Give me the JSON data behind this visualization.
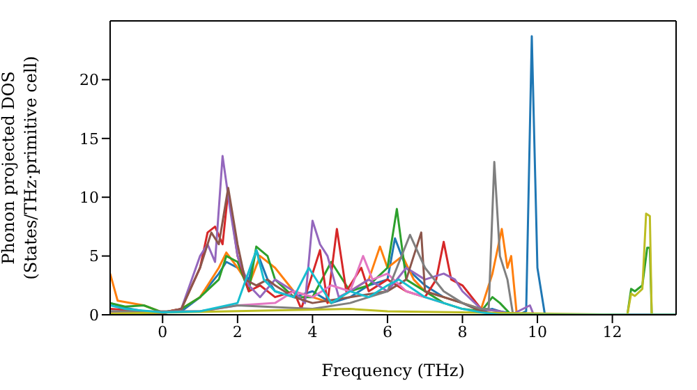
{
  "chart_data": {
    "type": "line",
    "xlabel": "Frequency (THz)",
    "ylabel": "Phonon projected DOS\n(States/THz·primitive cell)",
    "xlim": [
      -1.4,
      13.7
    ],
    "xticks": [
      0,
      2,
      4,
      6,
      8,
      10,
      12
    ],
    "ylim": [
      0,
      25
    ],
    "yticks": [
      0,
      5,
      10,
      15,
      20
    ],
    "grid": false,
    "legend": false,
    "marker": "none",
    "line_style": "solid",
    "series": [
      {
        "color": "#1f77b4",
        "x": [
          -1.4,
          -1,
          -0.5,
          0,
          0.5,
          1,
          1.5,
          1.7,
          2,
          2.3,
          2.5,
          2.8,
          3,
          3.5,
          4,
          4.5,
          5,
          5.5,
          6,
          6.2,
          6.5,
          7,
          7.5,
          8,
          8.5,
          8.8,
          9,
          9.5,
          9.7,
          9.85,
          10,
          10.2
        ],
        "values": [
          1,
          0.6,
          0.3,
          0.2,
          0.3,
          1.5,
          3.5,
          4.5,
          4,
          3,
          5.5,
          3,
          2,
          1.5,
          2,
          1,
          1.5,
          2.5,
          3,
          6.5,
          4,
          2.5,
          1.5,
          1,
          0.3,
          0.5,
          0.3,
          0,
          0.3,
          23.7,
          4,
          0
        ]
      },
      {
        "color": "#ff7f0e",
        "x": [
          -1.4,
          -1.2,
          -0.5,
          0,
          0.5,
          1,
          1.5,
          1.7,
          2,
          2.3,
          2.6,
          3,
          3.5,
          4,
          4.5,
          5,
          5.5,
          5.8,
          6,
          6.4,
          6.7,
          7,
          7.5,
          8,
          8.5,
          8.8,
          9.05,
          9.2,
          9.3,
          9.45,
          13.7
        ],
        "values": [
          3.5,
          1.2,
          0.8,
          0.2,
          0.5,
          1.5,
          4,
          5.3,
          4,
          2.5,
          5,
          4,
          2,
          1.5,
          1,
          2,
          3,
          5.8,
          4,
          5,
          3,
          2,
          1.5,
          1,
          0.5,
          3.5,
          7.3,
          4,
          5,
          0,
          0
        ]
      },
      {
        "color": "#2ca02c",
        "x": [
          -1.4,
          -1,
          -0.5,
          0,
          0.5,
          1,
          1.5,
          1.7,
          2,
          2.3,
          2.5,
          2.8,
          3,
          3.5,
          4,
          4.5,
          5,
          5.5,
          6,
          6.25,
          6.5,
          7,
          7.5,
          8,
          8.5,
          8.8,
          9,
          9.3,
          12.4,
          12.5,
          12.6,
          12.8,
          12.93,
          13,
          13.05,
          13.7
        ],
        "values": [
          1,
          0.7,
          0.8,
          0.2,
          0.5,
          1.5,
          3,
          5,
          4.5,
          2,
          5.8,
          5,
          3,
          1.5,
          1.5,
          4.5,
          2,
          2.5,
          4,
          9,
          3,
          2,
          1,
          0.5,
          0.3,
          1.5,
          1,
          0,
          0,
          2.2,
          2,
          2.5,
          5.7,
          5.7,
          0,
          0
        ]
      },
      {
        "color": "#d62728",
        "x": [
          -1.4,
          0,
          0.5,
          1,
          1.2,
          1.4,
          1.6,
          1.75,
          2,
          2.3,
          2.6,
          3,
          3.5,
          3.7,
          4.2,
          4.4,
          4.65,
          4.9,
          5.3,
          5.5,
          6,
          6.5,
          7,
          7.3,
          7.5,
          7.7,
          8,
          8.5,
          9
        ],
        "values": [
          0.5,
          0.2,
          0.5,
          4,
          7,
          7.5,
          6,
          10.5,
          5,
          2,
          2.5,
          1.5,
          2,
          0.5,
          5.5,
          1,
          7.3,
          2,
          4,
          2,
          3,
          2,
          1.5,
          3,
          6.2,
          3,
          2.5,
          0.5,
          0.3
        ]
      },
      {
        "color": "#9467bd",
        "x": [
          -1.4,
          0,
          0.5,
          1,
          1.2,
          1.4,
          1.6,
          1.8,
          2,
          2.3,
          2.6,
          3,
          3.5,
          3.8,
          4,
          4.2,
          4.4,
          4.7,
          5,
          5.5,
          6,
          6.5,
          7,
          7.5,
          7.8,
          8,
          8.5,
          9,
          9.3,
          9.8,
          9.9,
          13.7
        ],
        "values": [
          0.3,
          0.1,
          0.5,
          5,
          6,
          4.5,
          13.5,
          9,
          5,
          2.5,
          1.5,
          3,
          2,
          1,
          8,
          6,
          5,
          1.5,
          2,
          3,
          2,
          4,
          3,
          3.5,
          3,
          2,
          0.5,
          0.3,
          0,
          0.8,
          0,
          0
        ]
      },
      {
        "color": "#8c564b",
        "x": [
          -1.4,
          0,
          0.5,
          1,
          1.3,
          1.5,
          1.75,
          2,
          2.2,
          2.5,
          2.8,
          3,
          3.5,
          4,
          5,
          6,
          6.5,
          6.9,
          7,
          7.5,
          8,
          8.5,
          9,
          13.7
        ],
        "values": [
          0.2,
          0.1,
          0.5,
          4,
          7,
          6,
          10.8,
          6,
          3,
          2.5,
          3,
          2.5,
          1.5,
          1,
          1.5,
          2,
          3,
          7,
          2,
          1.5,
          1,
          0.3,
          0,
          0
        ]
      },
      {
        "color": "#e377c2",
        "x": [
          -1.4,
          1,
          2,
          3,
          3.5,
          4,
          4.5,
          5,
          5.35,
          5.6,
          6,
          6.5,
          7,
          7.5
        ],
        "values": [
          0.2,
          0.3,
          0.8,
          1,
          2,
          1.5,
          2.5,
          2,
          5,
          3,
          3.5,
          2,
          1.5,
          1
        ]
      },
      {
        "color": "#7f7f7f",
        "x": [
          -1.4,
          1,
          2,
          4,
          5,
          6,
          6.6,
          7,
          7.5,
          8,
          8.5,
          8.7,
          8.85,
          9,
          9.2,
          9.35,
          13.7
        ],
        "values": [
          0.3,
          0.3,
          0.8,
          0.5,
          1,
          2,
          6.8,
          4,
          2,
          1,
          0.5,
          0.5,
          13,
          5,
          3,
          0,
          0
        ]
      },
      {
        "color": "#bcbd22",
        "x": [
          -1.4,
          5,
          6,
          12.4,
          12.5,
          12.6,
          12.8,
          12.9,
          13,
          13.05,
          13.7
        ],
        "values": [
          0.1,
          0.5,
          0.3,
          0,
          1.8,
          1.6,
          2.2,
          8.6,
          8.4,
          0,
          0
        ]
      },
      {
        "color": "#17becf",
        "x": [
          -1.4,
          -1,
          0,
          1,
          2,
          2.5,
          2.7,
          3,
          3.5,
          3.9,
          4.2,
          4.5,
          5,
          5.5,
          6,
          6.3,
          7,
          7.5,
          8,
          8.5,
          9,
          13.7
        ],
        "values": [
          0.8,
          0.5,
          0.2,
          0.3,
          1,
          5.5,
          3,
          2,
          1.5,
          4,
          2.5,
          1,
          2,
          1.5,
          2.5,
          3,
          1.5,
          1,
          0.5,
          0.2,
          0,
          0
        ]
      }
    ]
  }
}
